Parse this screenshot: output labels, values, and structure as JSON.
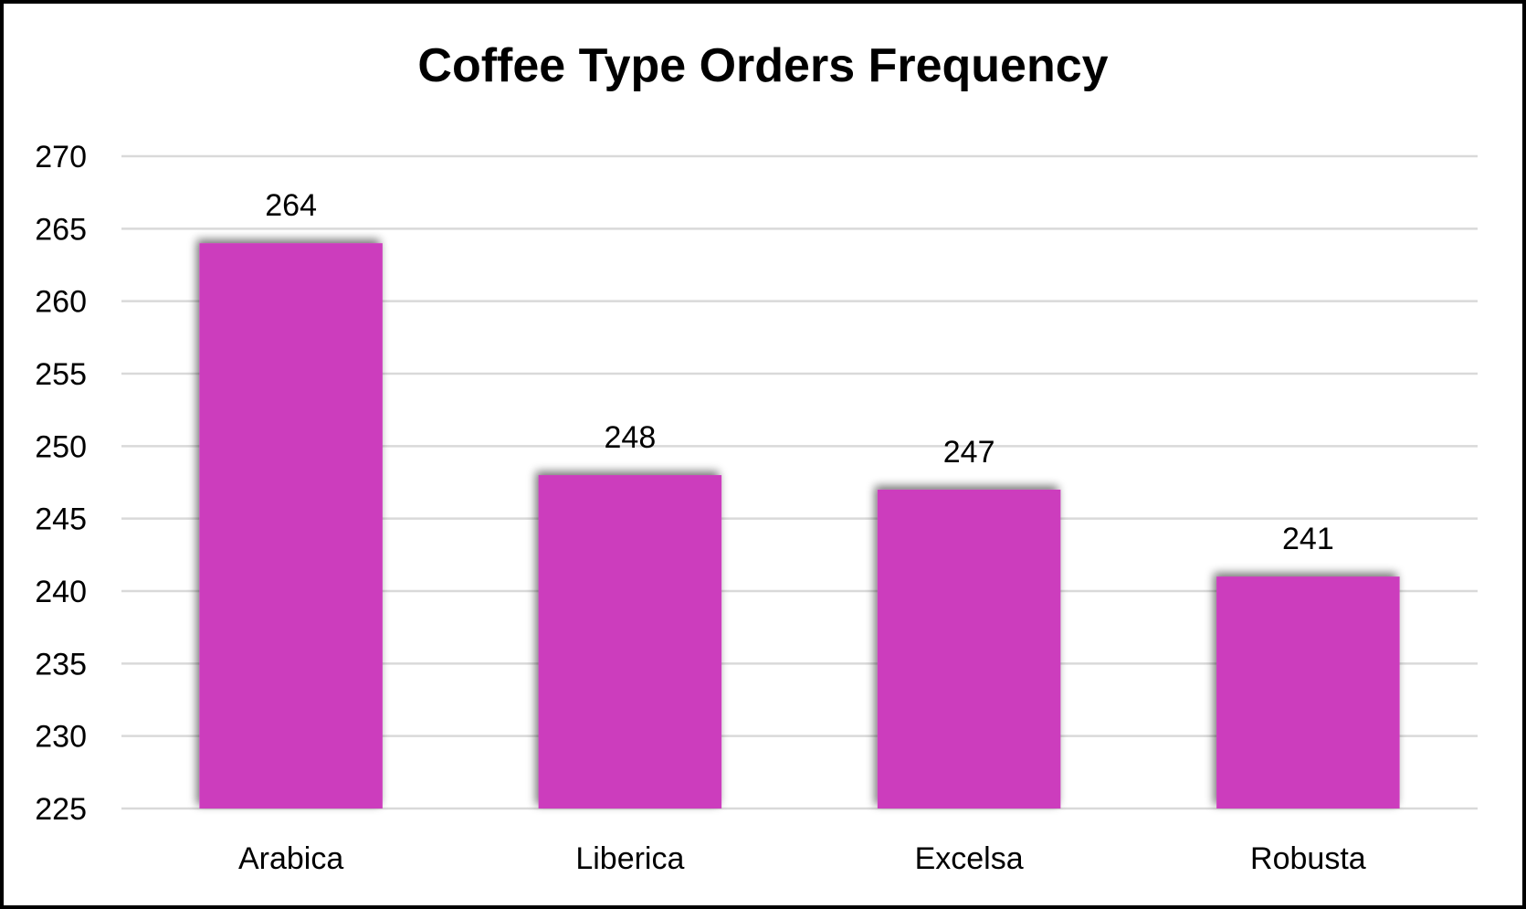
{
  "chart_data": {
    "type": "bar",
    "title": "Coffee Type Orders Frequency",
    "xlabel": "",
    "ylabel": "",
    "categories": [
      "Arabica",
      "Liberica",
      "Excelsa",
      "Robusta"
    ],
    "values": [
      264,
      248,
      247,
      241
    ],
    "ylim": [
      225,
      270
    ],
    "yticks": [
      225,
      230,
      235,
      240,
      245,
      250,
      255,
      260,
      265,
      270
    ],
    "grid": true,
    "legend": "none",
    "bar_color": "#CC3CBD",
    "data_labels": true
  }
}
